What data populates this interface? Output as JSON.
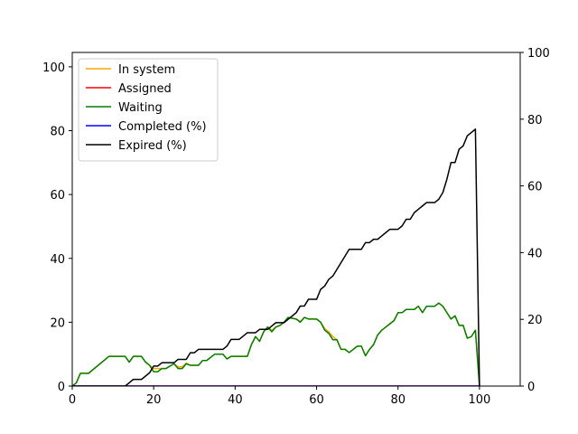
{
  "chart_data": {
    "type": "line",
    "title": "",
    "xlabel": "",
    "ylabel": "",
    "xlim": [
      0,
      110
    ],
    "ylim_left": [
      0,
      104.5
    ],
    "ylim_right": [
      0,
      100
    ],
    "x_ticks": [
      0,
      20,
      40,
      60,
      80,
      100
    ],
    "y_ticks_left": [
      0,
      20,
      40,
      60,
      80,
      100
    ],
    "y_ticks_right": [
      0,
      20,
      40,
      60,
      80,
      100
    ],
    "grid": false,
    "legend_position": "top-left",
    "series": [
      {
        "name": "In system",
        "color": "#ffa500",
        "axis": "left",
        "points": [
          [
            0,
            0
          ],
          [
            1,
            1
          ],
          [
            2,
            4
          ],
          [
            4,
            4
          ],
          [
            9,
            9.3
          ],
          [
            13,
            9.3
          ],
          [
            14,
            7.5
          ],
          [
            15,
            9.3
          ],
          [
            17,
            9.3
          ],
          [
            18,
            7.5
          ],
          [
            20,
            5.5
          ],
          [
            22,
            5.5
          ],
          [
            23,
            5.5
          ],
          [
            25,
            7
          ],
          [
            26,
            6
          ],
          [
            27,
            6
          ],
          [
            28,
            7.2
          ],
          [
            29,
            6.5
          ],
          [
            31,
            6.5
          ],
          [
            32,
            8
          ],
          [
            33,
            8
          ],
          [
            35,
            10
          ],
          [
            37,
            10
          ],
          [
            38,
            8.5
          ],
          [
            39,
            9.3
          ],
          [
            43,
            9.3
          ],
          [
            44,
            13
          ],
          [
            45,
            15.5
          ],
          [
            46,
            14
          ],
          [
            47,
            17
          ],
          [
            48,
            18.5
          ],
          [
            49,
            17.5
          ],
          [
            50,
            18.5
          ],
          [
            51,
            19
          ],
          [
            52,
            20
          ],
          [
            53,
            21.5
          ],
          [
            55,
            21
          ],
          [
            56,
            20.2
          ],
          [
            57,
            21.5
          ],
          [
            58,
            21
          ],
          [
            60,
            21
          ],
          [
            61,
            20
          ],
          [
            62,
            18
          ],
          [
            63,
            17
          ],
          [
            64,
            15.5
          ],
          [
            65,
            14.5
          ],
          [
            66,
            11.5
          ],
          [
            67,
            11.5
          ],
          [
            68,
            10.5
          ],
          [
            70,
            12.5
          ],
          [
            71,
            12.5
          ],
          [
            72,
            9.5
          ],
          [
            73,
            11.5
          ],
          [
            74,
            13
          ],
          [
            75,
            16
          ],
          [
            76,
            17.5
          ],
          [
            77,
            18.5
          ],
          [
            78,
            19.5
          ],
          [
            79,
            20.5
          ],
          [
            80,
            23
          ],
          [
            81,
            23
          ],
          [
            82,
            24
          ],
          [
            84,
            24
          ],
          [
            85,
            25
          ],
          [
            86,
            23
          ],
          [
            87,
            25
          ],
          [
            89,
            25
          ],
          [
            90,
            26
          ],
          [
            91,
            25
          ],
          [
            92,
            23
          ],
          [
            93,
            21
          ],
          [
            94,
            22
          ],
          [
            95,
            19
          ],
          [
            96,
            19
          ],
          [
            97,
            15
          ],
          [
            98,
            15.5
          ],
          [
            99,
            17.5
          ],
          [
            100,
            0
          ]
        ]
      },
      {
        "name": "Assigned",
        "color": "#ff0000",
        "axis": "left",
        "points": [
          [
            0,
            0
          ],
          [
            100,
            0
          ]
        ]
      },
      {
        "name": "Waiting",
        "color": "#008000",
        "axis": "left",
        "points": [
          [
            0,
            0
          ],
          [
            1,
            1
          ],
          [
            2,
            4
          ],
          [
            4,
            4
          ],
          [
            9,
            9.3
          ],
          [
            13,
            9.3
          ],
          [
            14,
            7.5
          ],
          [
            15,
            9.3
          ],
          [
            17,
            9.3
          ],
          [
            18,
            7.5
          ],
          [
            19,
            6.5
          ],
          [
            20,
            4.5
          ],
          [
            21,
            4.5
          ],
          [
            22,
            5.5
          ],
          [
            23,
            5.5
          ],
          [
            25,
            7
          ],
          [
            26,
            5.5
          ],
          [
            27,
            5.5
          ],
          [
            28,
            7
          ],
          [
            29,
            6.5
          ],
          [
            31,
            6.5
          ],
          [
            32,
            8
          ],
          [
            33,
            8
          ],
          [
            35,
            10
          ],
          [
            37,
            10
          ],
          [
            38,
            8.5
          ],
          [
            39,
            9.3
          ],
          [
            43,
            9.3
          ],
          [
            44,
            13
          ],
          [
            45,
            15.5
          ],
          [
            46,
            14
          ],
          [
            47,
            17
          ],
          [
            48,
            18.5
          ],
          [
            49,
            17
          ],
          [
            50,
            18.5
          ],
          [
            51,
            19
          ],
          [
            52,
            20
          ],
          [
            53,
            21.5
          ],
          [
            55,
            21
          ],
          [
            56,
            20
          ],
          [
            57,
            21.5
          ],
          [
            58,
            21
          ],
          [
            60,
            21
          ],
          [
            61,
            20
          ],
          [
            62,
            17.5
          ],
          [
            63,
            16.5
          ],
          [
            64,
            14.5
          ],
          [
            65,
            14.5
          ],
          [
            66,
            11.5
          ],
          [
            67,
            11.5
          ],
          [
            68,
            10.5
          ],
          [
            70,
            12.5
          ],
          [
            71,
            12.5
          ],
          [
            72,
            9.5
          ],
          [
            73,
            11.5
          ],
          [
            74,
            13
          ],
          [
            75,
            16
          ],
          [
            76,
            17.5
          ],
          [
            77,
            18.5
          ],
          [
            78,
            19.5
          ],
          [
            79,
            20.5
          ],
          [
            80,
            23
          ],
          [
            81,
            23
          ],
          [
            82,
            24
          ],
          [
            84,
            24
          ],
          [
            85,
            25
          ],
          [
            86,
            23
          ],
          [
            87,
            25
          ],
          [
            89,
            25
          ],
          [
            90,
            26
          ],
          [
            91,
            25
          ],
          [
            92,
            23
          ],
          [
            93,
            21
          ],
          [
            94,
            22
          ],
          [
            95,
            19
          ],
          [
            96,
            19
          ],
          [
            97,
            15
          ],
          [
            98,
            15.5
          ],
          [
            99,
            17.5
          ],
          [
            100,
            0
          ]
        ]
      },
      {
        "name": "Completed (%)",
        "color": "#0000ff",
        "axis": "right",
        "points": [
          [
            0,
            0
          ],
          [
            100,
            0
          ]
        ]
      },
      {
        "name": "Expired (%)",
        "color": "#000000",
        "axis": "right",
        "points": [
          [
            0,
            0
          ],
          [
            13,
            0
          ],
          [
            14,
            1
          ],
          [
            15,
            2
          ],
          [
            17,
            2
          ],
          [
            18,
            3
          ],
          [
            19,
            4
          ],
          [
            20,
            6
          ],
          [
            21,
            6
          ],
          [
            22,
            7
          ],
          [
            25,
            7
          ],
          [
            26,
            8
          ],
          [
            28,
            8
          ],
          [
            29,
            10
          ],
          [
            30,
            10
          ],
          [
            31,
            11
          ],
          [
            37,
            11
          ],
          [
            38,
            12
          ],
          [
            39,
            14
          ],
          [
            41,
            14
          ],
          [
            42,
            15
          ],
          [
            43,
            16
          ],
          [
            45,
            16
          ],
          [
            46,
            17
          ],
          [
            48,
            17
          ],
          [
            49,
            18
          ],
          [
            50,
            19
          ],
          [
            52,
            19
          ],
          [
            53,
            20
          ],
          [
            54,
            21
          ],
          [
            55,
            22
          ],
          [
            56,
            24
          ],
          [
            57,
            24
          ],
          [
            58,
            26
          ],
          [
            60,
            26
          ],
          [
            61,
            29
          ],
          [
            62,
            30
          ],
          [
            63,
            32
          ],
          [
            64,
            33
          ],
          [
            65,
            35
          ],
          [
            66,
            37
          ],
          [
            67,
            39
          ],
          [
            68,
            41
          ],
          [
            71,
            41
          ],
          [
            72,
            43
          ],
          [
            73,
            43
          ],
          [
            74,
            44
          ],
          [
            75,
            44
          ],
          [
            76,
            45
          ],
          [
            77,
            46
          ],
          [
            78,
            47
          ],
          [
            80,
            47
          ],
          [
            81,
            48
          ],
          [
            82,
            50
          ],
          [
            83,
            50
          ],
          [
            84,
            52
          ],
          [
            85,
            53
          ],
          [
            86,
            54
          ],
          [
            87,
            55
          ],
          [
            89,
            55
          ],
          [
            90,
            56
          ],
          [
            91,
            58
          ],
          [
            92,
            62
          ],
          [
            93,
            67
          ],
          [
            94,
            67
          ],
          [
            95,
            71
          ],
          [
            96,
            72
          ],
          [
            97,
            75
          ],
          [
            98,
            76
          ],
          [
            99,
            77
          ],
          [
            100,
            0
          ]
        ]
      }
    ]
  }
}
